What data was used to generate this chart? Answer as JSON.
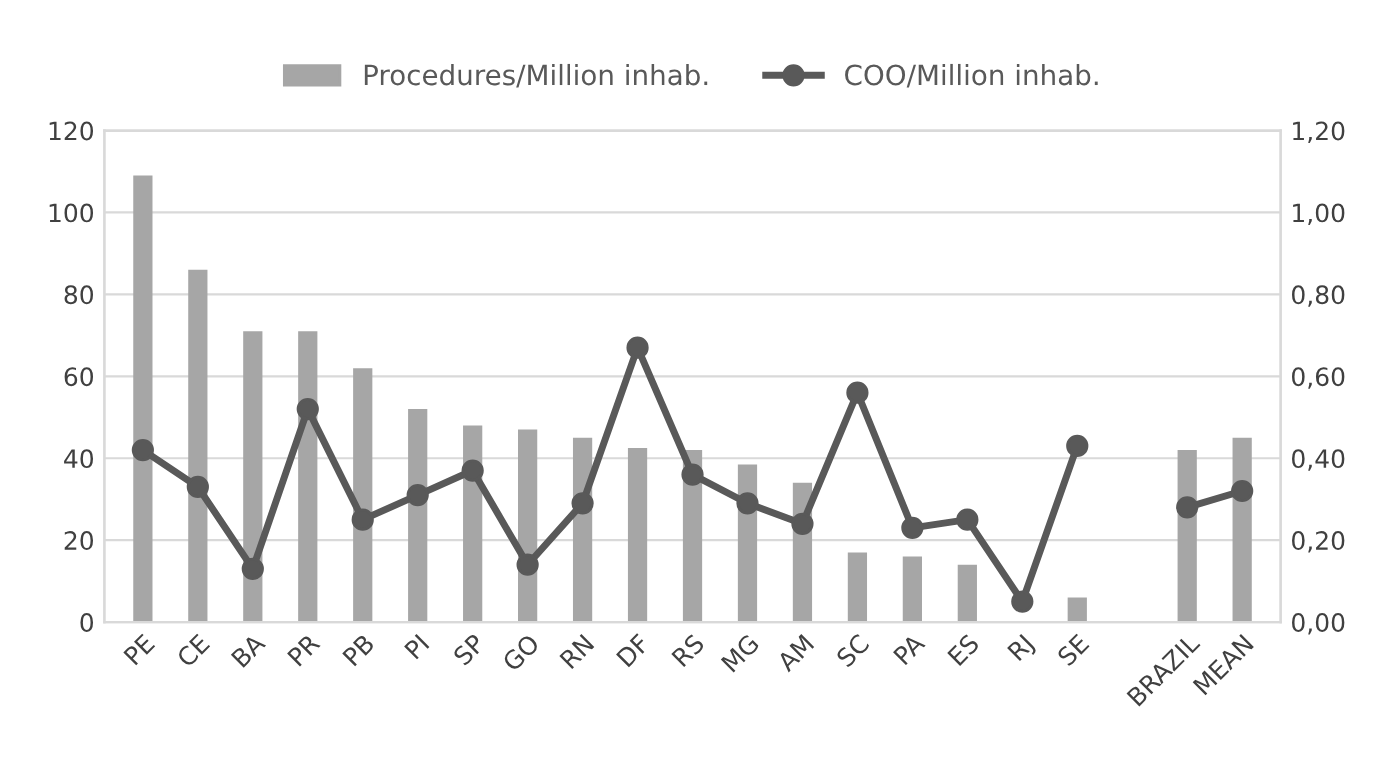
{
  "chart_data": {
    "type": "bar",
    "categories": [
      "PE",
      "CE",
      "BA",
      "PR",
      "PB",
      "PI",
      "SP",
      "GO",
      "RN",
      "DF",
      "RS",
      "MG",
      "AM",
      "SC",
      "PA",
      "ES",
      "RJ",
      "SE",
      null,
      "BRAZIL",
      "MEAN"
    ],
    "series": [
      {
        "name": "Procedures/Million inhab.",
        "color": "#a6a6a6",
        "values": [
          109,
          86,
          71,
          71,
          62,
          52,
          48,
          47,
          45,
          42.5,
          42,
          38.5,
          34,
          17,
          16,
          14,
          null,
          6,
          null,
          42,
          45
        ]
      },
      {
        "name": "COO/Million inhab.",
        "type": "line",
        "axis": "y2",
        "color": "#595959",
        "marker": "circle",
        "values": [
          0.42,
          0.33,
          0.13,
          0.52,
          0.25,
          0.31,
          0.37,
          0.14,
          0.29,
          0.67,
          0.36,
          0.29,
          0.24,
          0.56,
          0.23,
          0.25,
          0.05,
          0.43,
          null,
          0.28,
          0.32
        ]
      }
    ],
    "ylim": [
      0,
      120
    ],
    "yticks": [
      0,
      20,
      40,
      60,
      80,
      100,
      120
    ],
    "y2lim": [
      0,
      1.2
    ],
    "y2ticks": [
      {
        "value": 0,
        "label": "0,00"
      },
      {
        "value": 0.2,
        "label": "0,20"
      },
      {
        "value": 0.4,
        "label": "0,40"
      },
      {
        "value": 0.6,
        "label": "0,60"
      },
      {
        "value": 0.8,
        "label": "0,80"
      },
      {
        "value": 1.0,
        "label": "1,00"
      },
      {
        "value": 1.2,
        "label": "1,20"
      }
    ],
    "grid": "y",
    "legend": "top"
  }
}
